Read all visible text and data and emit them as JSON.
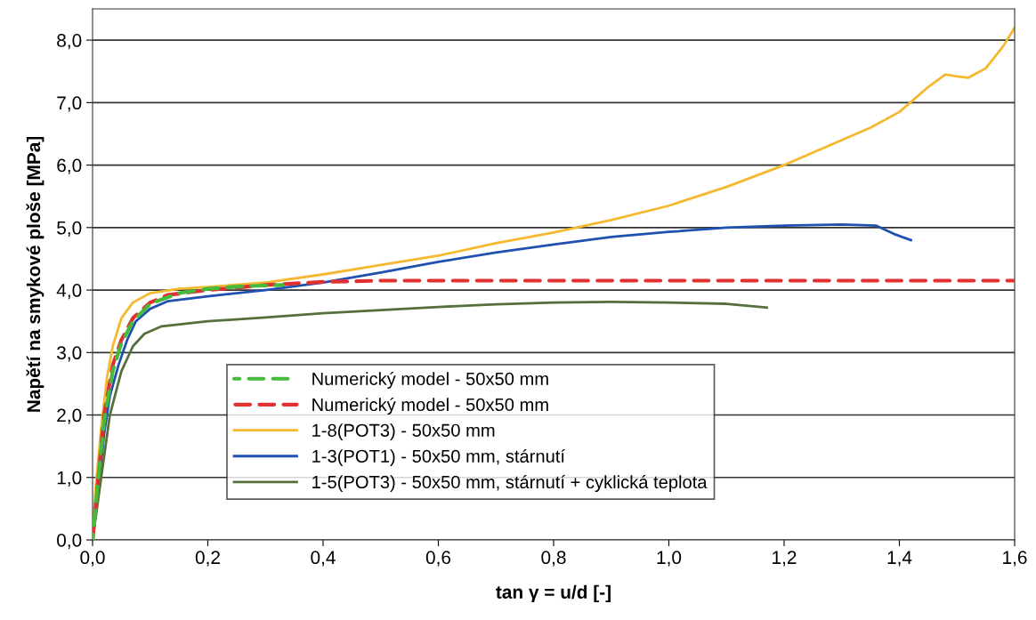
{
  "chart_data": {
    "type": "line",
    "xlabel": "tan γ = u/d [-]",
    "ylabel": "Napětí na smykové ploše [MPa]",
    "xlim": [
      0,
      1.6
    ],
    "ylim": [
      0,
      8.5
    ],
    "xticks": [
      {
        "value": 0,
        "label": "0,0"
      },
      {
        "value": 0.2,
        "label": "0,2"
      },
      {
        "value": 0.4,
        "label": "0,4"
      },
      {
        "value": 0.6,
        "label": "0,6"
      },
      {
        "value": 0.8,
        "label": "0,8"
      },
      {
        "value": 1.0,
        "label": "1,0"
      },
      {
        "value": 1.2,
        "label": "1,2"
      },
      {
        "value": 1.4,
        "label": "1,4"
      },
      {
        "value": 1.6,
        "label": "1,6"
      }
    ],
    "yticks": [
      {
        "value": 0,
        "label": "0,0"
      },
      {
        "value": 1,
        "label": "1,0"
      },
      {
        "value": 2,
        "label": "2,0"
      },
      {
        "value": 3,
        "label": "3,0"
      },
      {
        "value": 4,
        "label": "4,0"
      },
      {
        "value": 5,
        "label": "5,0"
      },
      {
        "value": 6,
        "label": "6,0"
      },
      {
        "value": 7,
        "label": "7,0"
      },
      {
        "value": 8,
        "label": "8,0"
      }
    ],
    "grid": "y",
    "legend": "bottom",
    "marker": "none",
    "series": [
      {
        "name": "Numerický model - 50x50 mm",
        "color": "#44bb3a",
        "line_style": "dashed",
        "x": [
          0,
          0.01,
          0.02,
          0.035,
          0.05,
          0.07,
          0.1,
          0.15,
          0.2,
          0.26,
          0.33
        ],
        "values": [
          0,
          1.0,
          1.9,
          2.7,
          3.15,
          3.5,
          3.78,
          3.95,
          4.02,
          4.06,
          4.08
        ]
      },
      {
        "name": "Numerický model - 50x50 mm",
        "color": "#e03030",
        "line_style": "dashed",
        "x": [
          0,
          0.01,
          0.02,
          0.035,
          0.05,
          0.07,
          0.1,
          0.13,
          0.2,
          0.3,
          0.4,
          0.5,
          1.6
        ],
        "values": [
          0,
          1.0,
          2.0,
          2.8,
          3.2,
          3.55,
          3.8,
          3.92,
          4.0,
          4.08,
          4.13,
          4.15,
          4.15
        ]
      },
      {
        "name": "1-8(POT3) - 50x50 mm",
        "color": "#f5b82e",
        "line_style": "solid",
        "x": [
          0,
          0.005,
          0.015,
          0.025,
          0.035,
          0.05,
          0.07,
          0.1,
          0.15,
          0.2,
          0.3,
          0.4,
          0.5,
          0.6,
          0.7,
          0.8,
          0.85,
          0.9,
          1.0,
          1.1,
          1.2,
          1.3,
          1.35,
          1.4,
          1.45,
          1.48,
          1.5,
          1.52,
          1.55,
          1.58,
          1.6
        ],
        "values": [
          0,
          0.8,
          1.8,
          2.6,
          3.1,
          3.55,
          3.8,
          3.95,
          4.02,
          4.05,
          4.12,
          4.25,
          4.4,
          4.55,
          4.75,
          4.92,
          5.02,
          5.12,
          5.35,
          5.65,
          6.0,
          6.4,
          6.6,
          6.85,
          7.25,
          7.45,
          7.42,
          7.4,
          7.55,
          7.9,
          8.2
        ]
      },
      {
        "name": "1-3(POT1) - 50x50 mm, stárnutí",
        "color": "#2050b0",
        "line_style": "solid",
        "x": [
          0,
          0.01,
          0.02,
          0.03,
          0.045,
          0.06,
          0.075,
          0.1,
          0.13,
          0.2,
          0.3,
          0.4,
          0.5,
          0.6,
          0.7,
          0.8,
          0.9,
          1.0,
          1.1,
          1.2,
          1.3,
          1.36,
          1.39,
          1.42
        ],
        "values": [
          0,
          0.8,
          1.7,
          2.3,
          2.8,
          3.2,
          3.5,
          3.7,
          3.82,
          3.9,
          4.0,
          4.12,
          4.28,
          4.45,
          4.6,
          4.73,
          4.85,
          4.93,
          5.0,
          5.03,
          5.05,
          5.03,
          4.9,
          4.8
        ]
      },
      {
        "name": "1-5(POT3) - 50x50 mm, stárnutí + cyklická teplota",
        "color": "#55703a",
        "line_style": "solid",
        "x": [
          0,
          0.015,
          0.03,
          0.05,
          0.07,
          0.09,
          0.12,
          0.2,
          0.3,
          0.4,
          0.5,
          0.6,
          0.7,
          0.8,
          0.9,
          1.0,
          1.1,
          1.17
        ],
        "values": [
          0,
          1.0,
          2.0,
          2.7,
          3.1,
          3.3,
          3.42,
          3.5,
          3.56,
          3.63,
          3.68,
          3.73,
          3.77,
          3.8,
          3.81,
          3.8,
          3.78,
          3.72
        ]
      }
    ]
  }
}
